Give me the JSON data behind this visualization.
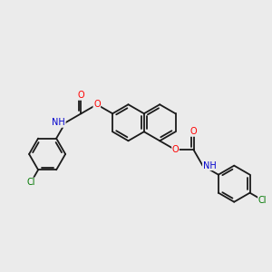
{
  "background_color": "#ebebeb",
  "bond_color": "#1a1a1a",
  "atom_colors": {
    "O": "#ff0000",
    "N": "#0000cd",
    "Cl": "#007700",
    "H": "#888888",
    "C": "#1a1a1a"
  },
  "figsize": [
    3.0,
    3.0
  ],
  "dpi": 100,
  "bond_lw": 1.3,
  "font_size": 7.0,
  "r_hex": 0.68,
  "bl": 0.68
}
